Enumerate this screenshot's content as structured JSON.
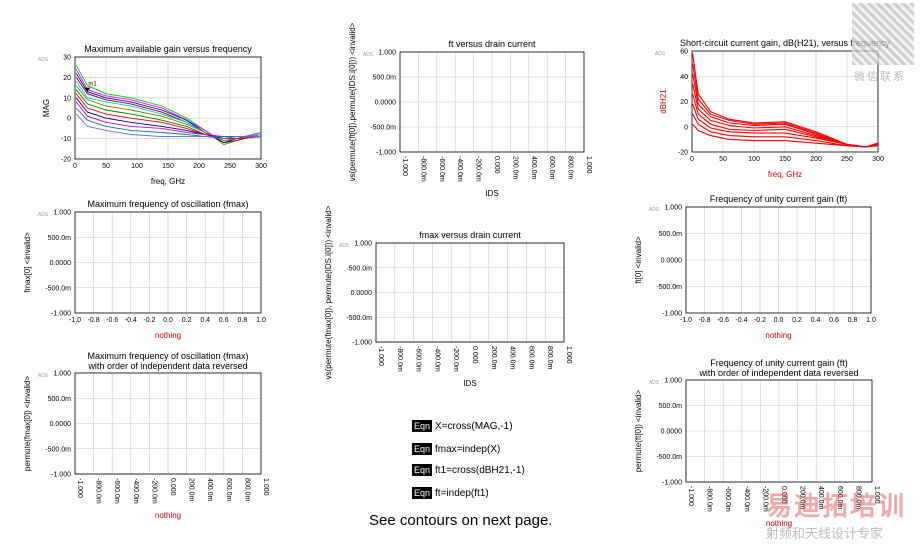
{
  "chart_data": [
    {
      "id": "mag",
      "type": "line",
      "title": "Maximum available gain versus frequency",
      "xlabel": "freq, GHz",
      "ylabel": "MAG",
      "xlim": [
        0,
        300
      ],
      "ylim": [
        -20,
        30
      ],
      "xticks": [
        "0",
        "50",
        "100",
        "150",
        "200",
        "250",
        "300"
      ],
      "yticks": [
        "-20",
        "-10",
        "0",
        "10",
        "20",
        "30"
      ],
      "tick_x_values": [
        0,
        50,
        100,
        150,
        200,
        250,
        300
      ],
      "tick_y_values": [
        -20,
        -10,
        0,
        10,
        20,
        30
      ],
      "marker_label": "m1",
      "series_note": "family of MAG curves, one per bias point",
      "series": [
        {
          "name": "c1",
          "color": "#00cc00",
          "x": [
            2,
            20,
            50,
            90,
            140,
            180,
            210,
            240,
            260,
            300
          ],
          "y": [
            26,
            16,
            12,
            10,
            6,
            0,
            -6,
            -13,
            -11,
            -7
          ]
        },
        {
          "name": "c2",
          "color": "#ff00ff",
          "x": [
            2,
            20,
            50,
            90,
            140,
            180,
            210,
            240,
            260,
            300
          ],
          "y": [
            24,
            14,
            11,
            9,
            5,
            -1,
            -6,
            -12,
            -10,
            -7
          ]
        },
        {
          "name": "c3",
          "color": "#0000ff",
          "x": [
            2,
            20,
            50,
            90,
            140,
            180,
            210,
            240,
            260,
            300
          ],
          "y": [
            22,
            13,
            10,
            8,
            4,
            -1,
            -7,
            -12,
            -10,
            -8
          ]
        },
        {
          "name": "c4",
          "color": "#800000",
          "x": [
            2,
            20,
            50,
            90,
            140,
            180,
            210,
            240,
            260,
            300
          ],
          "y": [
            20,
            12,
            9,
            7,
            3,
            -2,
            -7,
            -12,
            -11,
            -8
          ]
        },
        {
          "name": "c5",
          "color": "#00cccc",
          "x": [
            2,
            20,
            50,
            90,
            140,
            180,
            210,
            240,
            260,
            300
          ],
          "y": [
            18,
            10,
            8,
            6,
            2,
            -2,
            -7,
            -11,
            -10,
            -8
          ]
        },
        {
          "name": "c6",
          "color": "#808000",
          "x": [
            2,
            20,
            50,
            90,
            140,
            180,
            210,
            240,
            260,
            300
          ],
          "y": [
            16,
            9,
            6,
            4,
            1,
            -3,
            -7,
            -11,
            -10,
            -9
          ]
        },
        {
          "name": "c7",
          "color": "#008000",
          "x": [
            2,
            20,
            50,
            90,
            140,
            180,
            210,
            240,
            260,
            300
          ],
          "y": [
            14,
            7,
            4,
            2,
            -1,
            -4,
            -8,
            -10,
            -10,
            -9
          ]
        },
        {
          "name": "c8",
          "color": "#ff0000",
          "x": [
            2,
            20,
            50,
            90,
            140,
            180,
            210,
            240,
            260,
            300
          ],
          "y": [
            12,
            5,
            2,
            0,
            -2,
            -5,
            -8,
            -10,
            -10,
            -9
          ]
        },
        {
          "name": "c9",
          "color": "#000080",
          "x": [
            2,
            20,
            50,
            90,
            140,
            180,
            210,
            240,
            260,
            300
          ],
          "y": [
            10,
            3,
            0,
            -2,
            -4,
            -6,
            -8,
            -10,
            -9,
            -9
          ]
        },
        {
          "name": "c10",
          "color": "#cc00cc",
          "x": [
            2,
            20,
            50,
            90,
            140,
            180,
            210,
            240,
            260,
            300
          ],
          "y": [
            8,
            1,
            -2,
            -4,
            -5,
            -7,
            -8,
            -9,
            -9,
            -9
          ]
        },
        {
          "name": "c11",
          "color": "#008080",
          "x": [
            2,
            20,
            50,
            90,
            140,
            180,
            210,
            240,
            260,
            300
          ],
          "y": [
            5,
            -1,
            -4,
            -6,
            -7,
            -8,
            -9,
            -9,
            -9,
            -9
          ]
        },
        {
          "name": "c12",
          "color": "#6666ff",
          "x": [
            2,
            20,
            50,
            90,
            140,
            180,
            210,
            240,
            260,
            300
          ],
          "y": [
            2,
            -4,
            -6,
            -8,
            -9,
            -9,
            -9,
            -10,
            -9,
            -9
          ]
        }
      ]
    },
    {
      "id": "fmax",
      "type": "line",
      "title": "Maximum frequency of oscillation (fmax)",
      "xlabel": "nothing",
      "ylabel": "fmax[0] <invalid>",
      "xlim": [
        -1,
        1
      ],
      "ylim": [
        -1,
        1
      ],
      "xticks": [
        "-1.0",
        "-0.8",
        "-0.6",
        "-0.4",
        "-0.2",
        "0.0",
        "0.2",
        "0.4",
        "0.6",
        "0.8",
        "1.0"
      ],
      "yticks": [
        "-1.000",
        "-500.0m",
        "0.0000",
        "500.0m",
        "1.000"
      ],
      "series": []
    },
    {
      "id": "fmax_rev",
      "type": "line",
      "title": "Maximum frequency of oscillation (fmax)",
      "subtitle": "with order of independent data reversed",
      "xlabel": "nothing",
      "ylabel": "permute(fmax[0]) <invalid>",
      "xlim": [
        -1,
        1
      ],
      "ylim": [
        -1,
        1
      ],
      "xticks": [
        "-1.000",
        "-800.0m",
        "-600.0m",
        "-400.0m",
        "-200.0m",
        "0.000",
        "200.0m",
        "400.0m",
        "600.0m",
        "800.0m",
        "1.000"
      ],
      "yticks": [
        "-1.000",
        "-500.0m",
        "0.0000",
        "500.0m",
        "1.000"
      ],
      "series": []
    },
    {
      "id": "ft_ids",
      "type": "line",
      "title": "ft versus drain current",
      "xlabel": "IDS",
      "ylabel": "vs(permute(ft[0]),permute(IDS.i[0])) <invalid>",
      "xlim": [
        -1,
        1
      ],
      "ylim": [
        -1,
        1
      ],
      "xticks": [
        "-1.000",
        "-800.0m",
        "-600.0m",
        "-400.0m",
        "-200.0m",
        "0.000",
        "200.0m",
        "400.0m",
        "600.0m",
        "800.0m",
        "1.000"
      ],
      "yticks": [
        "-1.000",
        "-500.0m",
        "0.0000",
        "500.0m",
        "1.000"
      ],
      "series": []
    },
    {
      "id": "fmax_ids",
      "type": "line",
      "title": "fmax versus drain current",
      "xlabel": "IDS",
      "ylabel": "vs(permute(fmax[0]), permute(IDS.i[0])) <invalid>",
      "xlim": [
        -1,
        1
      ],
      "ylim": [
        -1,
        1
      ],
      "xticks": [
        "-1.000",
        "-800.0m",
        "-600.0m",
        "-400.0m",
        "-200.0m",
        "0.000",
        "200.0m",
        "400.0m",
        "600.0m",
        "800.0m",
        "1.000"
      ],
      "yticks": [
        "-1.000",
        "-500.0m",
        "0.0000",
        "500.0m",
        "1.000"
      ],
      "series": []
    },
    {
      "id": "h21",
      "type": "line",
      "title": "Short-circuit current gain, dB(H21), versus frequency",
      "xlabel": "freq, GHz",
      "ylabel": "dBH21",
      "xlim": [
        0,
        300
      ],
      "ylim": [
        -20,
        60
      ],
      "xticks": [
        "0",
        "50",
        "100",
        "150",
        "200",
        "250",
        "300"
      ],
      "yticks": [
        "-20",
        "0",
        "20",
        "40",
        "60"
      ],
      "series_note": "family of red dB(H21) curves",
      "series": [
        {
          "name": "h1",
          "color": "#ff0000",
          "x": [
            1,
            10,
            30,
            60,
            100,
            150,
            200,
            250,
            280,
            300
          ],
          "y": [
            58,
            26,
            12,
            6,
            3,
            4,
            -4,
            -14,
            -16,
            -13
          ]
        },
        {
          "name": "h2",
          "color": "#ff0000",
          "x": [
            1,
            10,
            30,
            60,
            100,
            150,
            200,
            250,
            280,
            300
          ],
          "y": [
            50,
            22,
            10,
            5,
            2,
            3,
            -5,
            -14,
            -16,
            -13
          ]
        },
        {
          "name": "h3",
          "color": "#ff0000",
          "x": [
            1,
            10,
            30,
            60,
            100,
            150,
            200,
            250,
            280,
            300
          ],
          "y": [
            42,
            18,
            8,
            3,
            1,
            2,
            -6,
            -14,
            -16,
            -14
          ]
        },
        {
          "name": "h4",
          "color": "#ff0000",
          "x": [
            1,
            10,
            30,
            60,
            100,
            150,
            200,
            250,
            280,
            300
          ],
          "y": [
            34,
            14,
            5,
            1,
            -1,
            0,
            -7,
            -14,
            -16,
            -14
          ]
        },
        {
          "name": "h5",
          "color": "#ff0000",
          "x": [
            1,
            10,
            30,
            60,
            100,
            150,
            200,
            250,
            280,
            300
          ],
          "y": [
            26,
            10,
            2,
            -2,
            -3,
            -2,
            -8,
            -14,
            -16,
            -14
          ]
        },
        {
          "name": "h6",
          "color": "#ff0000",
          "x": [
            1,
            10,
            30,
            60,
            100,
            150,
            200,
            250,
            280,
            300
          ],
          "y": [
            18,
            6,
            -1,
            -4,
            -5,
            -5,
            -9,
            -14,
            -16,
            -14
          ]
        },
        {
          "name": "h7",
          "color": "#ff0000",
          "x": [
            1,
            10,
            30,
            60,
            100,
            150,
            200,
            250,
            280,
            300
          ],
          "y": [
            10,
            2,
            -4,
            -7,
            -8,
            -8,
            -11,
            -15,
            -16,
            -14
          ]
        },
        {
          "name": "h8",
          "color": "#ff0000",
          "x": [
            1,
            10,
            30,
            60,
            100,
            150,
            200,
            250,
            280,
            300
          ],
          "y": [
            2,
            -3,
            -7,
            -10,
            -11,
            -11,
            -13,
            -15,
            -16,
            -15
          ]
        }
      ]
    },
    {
      "id": "ft",
      "type": "line",
      "title": "Frequency of unity current gain (ft)",
      "xlabel": "nothing",
      "ylabel": "ft[0] <invalid>",
      "xlim": [
        -1,
        1
      ],
      "ylim": [
        -1,
        1
      ],
      "xticks": [
        "-1.0",
        "-0.8",
        "-0.6",
        "-0.4",
        "-0.2",
        "0.0",
        "0.2",
        "0.4",
        "0.6",
        "0.8",
        "1.0"
      ],
      "yticks": [
        "-1.000",
        "-500.0m",
        "0.0000",
        "500.0m",
        "1.000"
      ],
      "series": []
    },
    {
      "id": "ft_rev",
      "type": "line",
      "title": "Frequency of unity current gain (ft)",
      "subtitle": "with order of independent data reversed",
      "xlabel": "nothing",
      "ylabel": "permute(ft[0]) <invalid>",
      "xlim": [
        -1,
        1
      ],
      "ylim": [
        -1,
        1
      ],
      "xticks": [
        "-1.000",
        "-800.0m",
        "-600.0m",
        "-400.0m",
        "-200.0m",
        "0.000",
        "200.0m",
        "400.0m",
        "600.0m",
        "800.0m",
        "1.000"
      ],
      "yticks": [
        "-1.000",
        "-500.0m",
        "0.0000",
        "500.0m",
        "1.000"
      ],
      "series": []
    }
  ],
  "ads_tag": "ADS",
  "equations": [
    {
      "tag": "Eqn",
      "text": "X=cross(MAG,-1)"
    },
    {
      "tag": "Eqn",
      "text": "fmax=indep(X)"
    },
    {
      "tag": "Eqn",
      "text": "ft1=cross(dBH21,-1)"
    },
    {
      "tag": "Eqn",
      "text": "ft=indep(ft1)"
    }
  ],
  "footer": "See contours on next page.",
  "watermark": {
    "top": "微信联系",
    "bottom_big": "易迪拓培训",
    "bottom_small": "射频和天线设计专家"
  }
}
